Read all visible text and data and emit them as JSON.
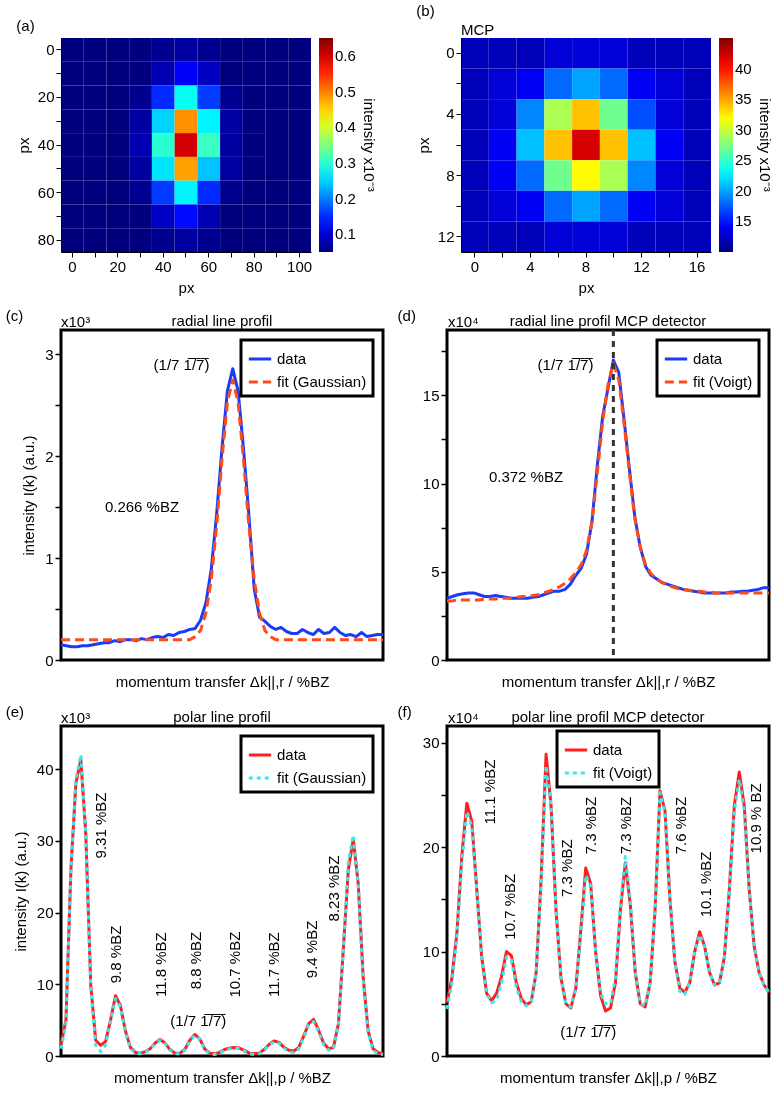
{
  "chart_data": [
    {
      "type": "heatmap",
      "title": "(a)",
      "xlabel": "px",
      "ylabel": "px",
      "clabel": "intensity x10⁻³",
      "categories": [
        "0",
        null,
        "20",
        null,
        "40",
        null,
        "60",
        null,
        "80",
        null,
        "100"
      ],
      "y_categories": [
        "0",
        null,
        "20",
        null,
        "40",
        null,
        "60",
        null,
        "80"
      ],
      "cells": [
        [
          0.05,
          0.05,
          0.05,
          0.05,
          0.06,
          0.07,
          0.06,
          0.05,
          0.05,
          0.05,
          0.05
        ],
        [
          0.05,
          0.05,
          0.05,
          0.05,
          0.08,
          0.12,
          0.09,
          0.05,
          0.05,
          0.05,
          0.05
        ],
        [
          0.05,
          0.05,
          0.05,
          0.06,
          0.15,
          0.28,
          0.16,
          0.06,
          0.05,
          0.05,
          0.05
        ],
        [
          0.05,
          0.05,
          0.05,
          0.07,
          0.25,
          0.49,
          0.27,
          0.07,
          0.05,
          0.05,
          0.05
        ],
        [
          0.05,
          0.05,
          0.05,
          0.08,
          0.3,
          0.6,
          0.31,
          0.07,
          0.05,
          0.05,
          0.05
        ],
        [
          0.05,
          0.05,
          0.05,
          0.07,
          0.26,
          0.48,
          0.24,
          0.07,
          0.05,
          0.05,
          0.05
        ],
        [
          0.05,
          0.05,
          0.05,
          0.06,
          0.16,
          0.27,
          0.15,
          0.06,
          0.05,
          0.05,
          0.05
        ],
        [
          0.05,
          0.05,
          0.05,
          0.05,
          0.09,
          0.13,
          0.08,
          0.05,
          0.05,
          0.05,
          0.05
        ],
        [
          0.05,
          0.05,
          0.05,
          0.05,
          0.06,
          0.07,
          0.06,
          0.05,
          0.05,
          0.05,
          0.05
        ]
      ],
      "clim": [
        0.05,
        0.65
      ],
      "cticks": [
        0.1,
        0.2,
        0.3,
        0.4,
        0.5,
        0.6
      ]
    },
    {
      "type": "heatmap",
      "title": "(b)",
      "annotations": [
        "MCP"
      ],
      "xlabel": "px",
      "ylabel": "px",
      "clabel": "intensity x10⁻³",
      "categories": [
        "0",
        null,
        "4",
        null,
        "8",
        null,
        "12",
        null,
        "16"
      ],
      "y_categories": [
        "0",
        null,
        "4",
        null,
        "8",
        null,
        "12"
      ],
      "cells": [
        [
          12,
          12,
          12,
          13,
          13,
          13,
          12,
          12,
          12
        ],
        [
          12,
          13,
          14,
          18,
          20,
          18,
          14,
          13,
          12
        ],
        [
          12,
          13,
          19,
          29,
          34,
          27,
          17,
          13,
          12
        ],
        [
          12,
          14,
          21,
          34,
          42,
          34,
          21,
          14,
          12
        ],
        [
          12,
          14,
          18,
          27,
          32,
          29,
          19,
          13,
          12
        ],
        [
          12,
          13,
          14,
          18,
          20,
          18,
          14,
          13,
          12
        ],
        [
          12,
          12,
          12,
          13,
          13,
          13,
          12,
          12,
          12
        ]
      ],
      "clim": [
        10,
        45
      ],
      "cticks": [
        15,
        20,
        25,
        30,
        35,
        40
      ]
    },
    {
      "type": "line",
      "title": "radial line profil",
      "annotations": [
        "(c)",
        "x10³",
        "(1/7 1̅/̅7̅)",
        "0.266 %BZ"
      ],
      "xlabel": "momentum transfer Δk||,r / %BZ",
      "ylabel": "intensity I(k) (a.u.)",
      "legend": "top right",
      "ylim": [
        0,
        3.24
      ],
      "yticks": [
        0,
        {
          "value": 0.5,
          "label": null
        },
        1,
        {
          "value": 1.5,
          "label": null
        },
        2,
        {
          "value": 2.5,
          "label": null
        },
        3
      ],
      "categories": [
        null,
        null,
        null,
        null,
        null,
        null,
        null,
        null,
        null,
        null,
        null,
        null,
        null,
        null,
        null,
        null,
        null,
        null,
        null,
        null,
        null,
        null,
        null,
        null,
        null,
        null,
        null,
        null,
        null,
        null,
        null,
        null,
        null,
        null,
        null,
        null,
        null,
        null,
        null,
        null,
        null,
        null,
        null,
        null,
        null,
        null,
        null,
        null,
        null,
        null,
        null,
        null,
        null,
        null,
        null,
        null,
        null,
        null,
        null,
        null,
        null
      ],
      "series": [
        {
          "name": "data",
          "color": "#1a3cf5",
          "line_style": "solid",
          "values": [
            0.15,
            0.14,
            0.13,
            0.13,
            0.14,
            0.14,
            0.15,
            0.16,
            0.17,
            0.17,
            0.19,
            0.18,
            0.2,
            0.2,
            0.19,
            0.21,
            0.2,
            0.22,
            0.23,
            0.22,
            0.25,
            0.24,
            0.27,
            0.28,
            0.3,
            0.31,
            0.39,
            0.56,
            0.89,
            1.43,
            2.08,
            2.64,
            2.86,
            2.64,
            2.08,
            1.43,
            0.7,
            0.42,
            0.38,
            0.33,
            0.3,
            0.32,
            0.28,
            0.26,
            0.26,
            0.3,
            0.27,
            0.25,
            0.3,
            0.26,
            0.27,
            0.32,
            0.27,
            0.24,
            0.25,
            0.23,
            0.27,
            0.23,
            0.24,
            0.25,
            0.25
          ]
        },
        {
          "name": "fit (Gaussian)",
          "color": "#ff4a1a",
          "line_style": "dashed",
          "values": [
            0.2,
            0.2,
            0.2,
            0.2,
            0.2,
            0.2,
            0.2,
            0.2,
            0.2,
            0.2,
            0.2,
            0.2,
            0.2,
            0.2,
            0.2,
            0.2,
            0.2,
            0.2,
            0.2,
            0.2,
            0.2,
            0.2,
            0.2,
            0.2,
            0.2,
            0.23,
            0.29,
            0.46,
            0.79,
            1.32,
            1.97,
            2.53,
            2.75,
            2.53,
            1.97,
            1.32,
            0.79,
            0.46,
            0.29,
            0.23,
            0.2,
            0.2,
            0.2,
            0.2,
            0.2,
            0.2,
            0.2,
            0.2,
            0.2,
            0.2,
            0.2,
            0.2,
            0.2,
            0.2,
            0.2,
            0.2,
            0.2,
            0.2,
            0.2,
            0.2,
            0.2
          ]
        }
      ]
    },
    {
      "type": "line",
      "title": "radial line profil MCP detector",
      "annotations": [
        "(d)",
        "x10⁴",
        "(1/7 1̅/̅7̅)",
        "0.372 %BZ"
      ],
      "xlabel": "momentum transfer Δk||,r / %BZ",
      "legend": "top right",
      "ylim": [
        0,
        18.7
      ],
      "yticks": [
        0,
        {
          "value": 2.5,
          "label": null
        },
        5,
        {
          "value": 7.5,
          "label": null
        },
        10,
        {
          "value": 12.5,
          "label": null
        },
        15,
        {
          "value": 17.5,
          "label": null
        }
      ],
      "categories": [
        null,
        null,
        null,
        null,
        null,
        null,
        null,
        null,
        null,
        null,
        null,
        null,
        null,
        null,
        null,
        null,
        null,
        null,
        null,
        null,
        null,
        null,
        null,
        null,
        null,
        null,
        null,
        null,
        null,
        null,
        null,
        null,
        null,
        null,
        null,
        null,
        null,
        null,
        null,
        null,
        null,
        null,
        null,
        null,
        null,
        null,
        null,
        null,
        null,
        null,
        null,
        null,
        null,
        null,
        null,
        null,
        null,
        null,
        null,
        null,
        null
      ],
      "series": [
        {
          "name": "data",
          "color": "#1a3cf5",
          "line_style": "solid",
          "values": [
            3.5,
            3.6,
            3.7,
            3.75,
            3.8,
            3.8,
            3.7,
            3.6,
            3.6,
            3.65,
            3.6,
            3.55,
            3.5,
            3.5,
            3.5,
            3.5,
            3.55,
            3.6,
            3.7,
            3.8,
            3.9,
            3.9,
            4.0,
            4.3,
            4.8,
            5.2,
            6.0,
            7.8,
            11.0,
            13.8,
            15.4,
            17.0,
            16.3,
            13.6,
            10.8,
            8.1,
            6.4,
            5.3,
            4.8,
            4.6,
            4.4,
            4.3,
            4.2,
            4.1,
            4.0,
            3.95,
            3.9,
            3.85,
            3.8,
            3.8,
            3.8,
            3.8,
            3.8,
            3.85,
            3.85,
            3.9,
            3.9,
            3.95,
            4.0,
            4.1,
            4.1
          ]
        },
        {
          "name": "fit (Voigt)",
          "color": "#ff4a1a",
          "line_style": "dashed",
          "values": [
            3.35,
            3.35,
            3.4,
            3.4,
            3.4,
            3.4,
            3.4,
            3.45,
            3.45,
            3.45,
            3.5,
            3.5,
            3.5,
            3.55,
            3.6,
            3.6,
            3.65,
            3.7,
            3.8,
            3.9,
            4.0,
            4.15,
            4.35,
            4.6,
            4.95,
            5.4,
            6.2,
            7.8,
            10.6,
            13.5,
            15.6,
            16.8,
            15.9,
            13.4,
            10.6,
            8.0,
            6.4,
            5.4,
            4.9,
            4.6,
            4.4,
            4.25,
            4.15,
            4.05,
            4.0,
            3.95,
            3.9,
            3.9,
            3.85,
            3.85,
            3.8,
            3.8,
            3.8,
            3.8,
            3.8,
            3.8,
            3.8,
            3.8,
            3.8,
            3.8,
            3.8
          ]
        }
      ]
    },
    {
      "type": "line",
      "title": "polar line profil",
      "annotations": [
        "(e)",
        "x10³",
        "9.31 %BZ",
        "9.8 %BZ",
        "11.8 %BZ",
        "8.8 %BZ",
        "10.7 %BZ",
        "11.7 %BZ",
        "9.4 %BZ",
        "8.23 %BZ",
        "(1/7 1̅/̅7̅)"
      ],
      "xlabel": "momentum transfer Δk||,p / %BZ",
      "ylabel": "intensity I(k) (a.u.)",
      "legend": "top right",
      "ylim": [
        0,
        46
      ],
      "yticks": [
        0,
        10,
        20,
        30,
        40
      ],
      "categories": [
        null,
        null,
        null,
        null,
        null,
        null,
        null,
        null,
        null,
        null,
        null,
        null,
        null,
        null,
        null,
        null,
        null,
        null,
        null,
        null,
        null,
        null,
        null,
        null,
        null,
        null,
        null,
        null,
        null,
        null,
        null,
        null,
        null,
        null,
        null,
        null,
        null,
        null,
        null,
        null,
        null,
        null,
        null,
        null,
        null,
        null,
        null,
        null,
        null,
        null,
        null,
        null,
        null,
        null,
        null,
        null,
        null,
        null,
        null,
        null,
        null,
        null,
        null,
        null,
        null,
        null
      ],
      "series": [
        {
          "name": "data",
          "color": "#ff1f1f",
          "line_style": "solid",
          "values": [
            1.6,
            5,
            26,
            38,
            41.3,
            31,
            10,
            2.2,
            1.5,
            2,
            5,
            8.4,
            7,
            3.5,
            1.2,
            0.5,
            0.4,
            0.6,
            1.0,
            1.8,
            2.3,
            1.8,
            0.9,
            0.4,
            0.4,
            0.9,
            2.2,
            3.0,
            2.4,
            1.0,
            0.4,
            0.3,
            0.5,
            0.9,
            1.1,
            1.2,
            1.1,
            0.8,
            0.4,
            0.3,
            0.4,
            0.9,
            1.6,
            2.1,
            1.9,
            1.2,
            0.8,
            0.7,
            1.2,
            2.8,
            4.5,
            5.1,
            3.6,
            1.8,
            1.0,
            1.2,
            4.5,
            15,
            26,
            30.2,
            24,
            11,
            3.5,
            1.0,
            0.5,
            0.3
          ]
        },
        {
          "name": "fit (Gaussian)",
          "color": "#3ee6ee",
          "line_style": "dotted",
          "values": [
            1.0,
            4.5,
            26,
            38.5,
            42.0,
            31,
            9.5,
            1.5,
            0.6,
            1.5,
            4.8,
            8.0,
            6.8,
            3.3,
            1.0,
            0.4,
            0.3,
            0.5,
            1.0,
            1.7,
            2.2,
            1.7,
            0.8,
            0.3,
            0.3,
            0.8,
            2.1,
            2.9,
            2.3,
            0.9,
            0.3,
            0.2,
            0.4,
            0.8,
            1.0,
            1.1,
            1.0,
            0.7,
            0.3,
            0.2,
            0.3,
            0.8,
            1.5,
            2.0,
            1.8,
            1.1,
            0.6,
            0.5,
            1.0,
            2.6,
            4.3,
            4.8,
            3.4,
            1.6,
            0.8,
            1.0,
            4.3,
            15,
            27,
            30.8,
            24,
            10.5,
            3.2,
            0.8,
            0.3,
            0.2
          ]
        }
      ]
    },
    {
      "type": "line",
      "title": "polar line profil MCP detector",
      "annotations": [
        "(f)",
        "x10⁴",
        "11.1 %BZ",
        "10.7 %BZ",
        "7.3 %BZ",
        "7.3 %BZ",
        "7.3 %BZ",
        "7.6 %BZ",
        "10.1 %BZ",
        "10.9 % BZ",
        "(1/7 1̅/̅7̅)"
      ],
      "xlabel": "momentum transfer Δk||,p / %BZ",
      "legend": "top",
      "ylim": [
        0,
        31.6
      ],
      "yticks": [
        0,
        {
          "value": 5,
          "label": null
        },
        10,
        {
          "value": 15,
          "label": null
        },
        20,
        {
          "value": 25,
          "label": null
        },
        30
      ],
      "categories": [
        null,
        null,
        null,
        null,
        null,
        null,
        null,
        null,
        null,
        null,
        null,
        null,
        null,
        null,
        null,
        null,
        null,
        null,
        null,
        null,
        null,
        null,
        null,
        null,
        null,
        null,
        null,
        null,
        null,
        null,
        null,
        null,
        null,
        null,
        null,
        null,
        null,
        null,
        null,
        null,
        null,
        null,
        null,
        null,
        null,
        null,
        null,
        null,
        null,
        null,
        null,
        null,
        null,
        null,
        null,
        null,
        null,
        null,
        null,
        null,
        null,
        null,
        null,
        null,
        null,
        null
      ],
      "series": [
        {
          "name": "data",
          "color": "#ff1f1f",
          "line_style": "solid",
          "values": [
            5.1,
            7.5,
            11.8,
            19.2,
            24.2,
            22.5,
            16,
            9.5,
            6.0,
            5.3,
            6.0,
            7.6,
            10.0,
            9.6,
            7.0,
            5.5,
            4.9,
            5.2,
            8,
            17,
            28.9,
            24,
            14,
            7.5,
            5.0,
            4.6,
            6.5,
            12,
            18.0,
            16.5,
            10,
            5.8,
            4.3,
            4.6,
            7.0,
            14,
            18.5,
            14.5,
            8,
            5.0,
            4.7,
            7.0,
            14,
            25.4,
            23.5,
            15,
            9,
            6.5,
            6.1,
            7.0,
            10,
            11.9,
            10.5,
            8,
            6.8,
            7.0,
            9.5,
            16,
            24,
            27.2,
            24,
            16,
            10.5,
            8,
            6.8,
            6.1
          ]
        },
        {
          "name": "fit (Voigt)",
          "color": "#3ee6ee",
          "line_style": "dotted",
          "values": [
            4.5,
            7,
            11.5,
            18.5,
            23.4,
            22,
            16,
            9.5,
            6,
            5.1,
            5.3,
            7.0,
            9.5,
            9.2,
            6.6,
            5.2,
            4.8,
            5.2,
            8,
            16.5,
            27.8,
            24,
            14,
            7.5,
            5.0,
            4.7,
            6.5,
            11.5,
            17.3,
            16.3,
            10,
            6.0,
            5.0,
            5.0,
            7.5,
            14.5,
            19.1,
            15,
            8,
            5.0,
            4.8,
            7.0,
            14,
            25.2,
            23.3,
            15,
            9,
            6.2,
            5.9,
            7.0,
            10,
            11.6,
            10.4,
            8,
            6.8,
            7.0,
            9.5,
            15.5,
            23.5,
            26.5,
            23.5,
            16,
            10.5,
            8,
            6.8,
            6.1
          ]
        }
      ]
    }
  ]
}
